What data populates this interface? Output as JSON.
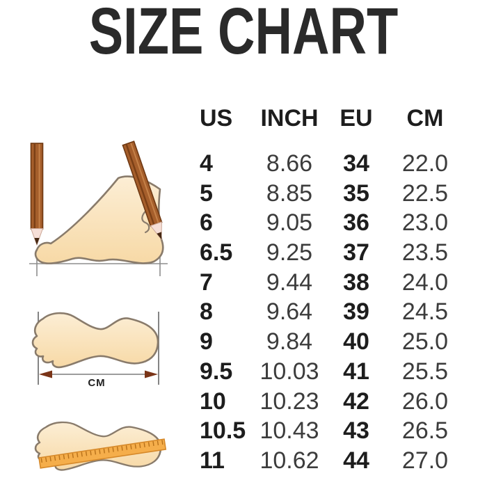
{
  "chart_data": {
    "type": "table",
    "title": "SIZE CHART",
    "columns": [
      "US",
      "INCH",
      "EU",
      "CM"
    ],
    "rows": [
      [
        "4",
        "8.66",
        "34",
        "22.0"
      ],
      [
        "5",
        "8.85",
        "35",
        "22.5"
      ],
      [
        "6",
        "9.05",
        "36",
        "23.0"
      ],
      [
        "6.5",
        "9.25",
        "37",
        "23.5"
      ],
      [
        "7",
        "9.44",
        "38",
        "24.0"
      ],
      [
        "8",
        "9.64",
        "39",
        "24.5"
      ],
      [
        "9",
        "9.84",
        "40",
        "25.0"
      ],
      [
        "9.5",
        "10.03",
        "41",
        "25.5"
      ],
      [
        "10",
        "10.23",
        "42",
        "26.0"
      ],
      [
        "10.5",
        "10.43",
        "43",
        "26.5"
      ],
      [
        "11",
        "10.62",
        "44",
        "27.0"
      ]
    ]
  },
  "illustrations": {
    "length_label": "CM"
  },
  "colors": {
    "text": "#272727",
    "foot_fill_light": "#FCEED5",
    "foot_fill_dark": "#F7D9A6",
    "outline": "#897B6B",
    "pencil_brown": "#A55E2B",
    "arrow_brown": "#7A3417",
    "ruler_orange": "#F5AE4B"
  }
}
